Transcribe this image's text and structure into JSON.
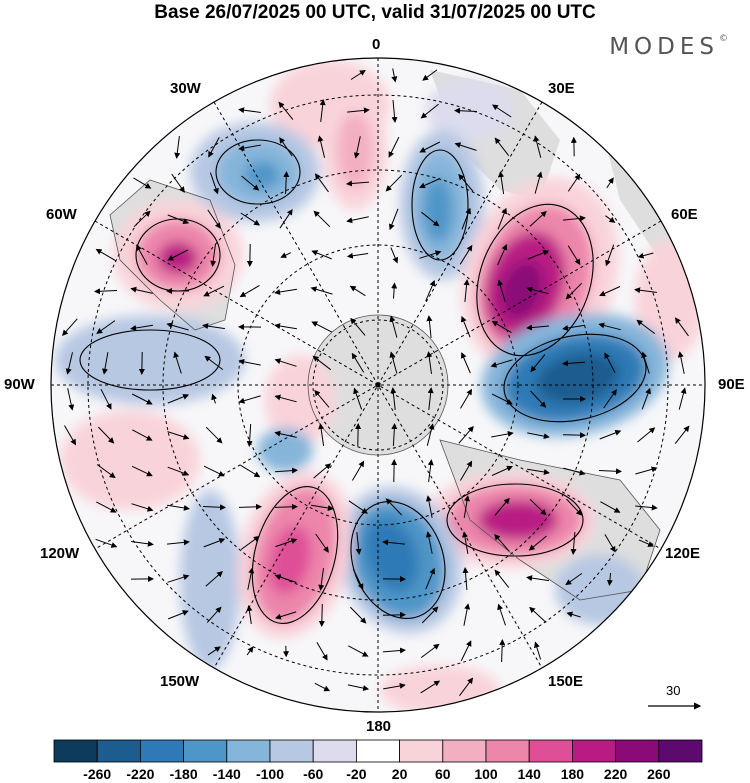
{
  "title": "Base 26/07/2025 00 UTC, valid 31/07/2025 00 UTC",
  "brand": "MODES",
  "brand_mark": "©",
  "longitude_labels": {
    "lon_0": "0",
    "lon_30e": "30E",
    "lon_60e": "60E",
    "lon_90e": "90E",
    "lon_120e": "120E",
    "lon_150e": "150E",
    "lon_180": "180",
    "lon_150w": "150W",
    "lon_120w": "120W",
    "lon_90w": "90W",
    "lon_60w": "60W",
    "lon_30w": "30W"
  },
  "wind_reference_label": "30",
  "colorbar": {
    "labels": [
      "-260",
      "-220",
      "-180",
      "-140",
      "-100",
      "-60",
      "-20",
      "20",
      "60",
      "100",
      "140",
      "180",
      "220",
      "260"
    ],
    "colors": [
      "#0e3a5c",
      "#1c5c8f",
      "#2f7ab6",
      "#4f96c8",
      "#86b5da",
      "#b7c8e3",
      "#dcdcee",
      "#ffffff",
      "#f9d3da",
      "#f3afc2",
      "#ec86ab",
      "#df4f98",
      "#b91a83",
      "#8a0a78",
      "#5c0a6e"
    ]
  },
  "anomaly_centers": [
    {
      "sign": "positive",
      "level": 260,
      "region": "south of India (60E-70E)"
    },
    {
      "sign": "negative",
      "level": -220,
      "region": "90E"
    },
    {
      "sign": "positive",
      "level": 220,
      "region": "south of Australia (110E-120E)"
    },
    {
      "sign": "negative",
      "level": -220,
      "region": "160E-170E"
    },
    {
      "sign": "positive",
      "level": 180,
      "region": "140W-150W"
    },
    {
      "sign": "positive",
      "level": 180,
      "region": "South America (60W-70W)"
    },
    {
      "sign": "negative",
      "level": -140,
      "region": "15W-30W"
    },
    {
      "sign": "negative",
      "level": -180,
      "region": "15E-25E"
    }
  ]
}
